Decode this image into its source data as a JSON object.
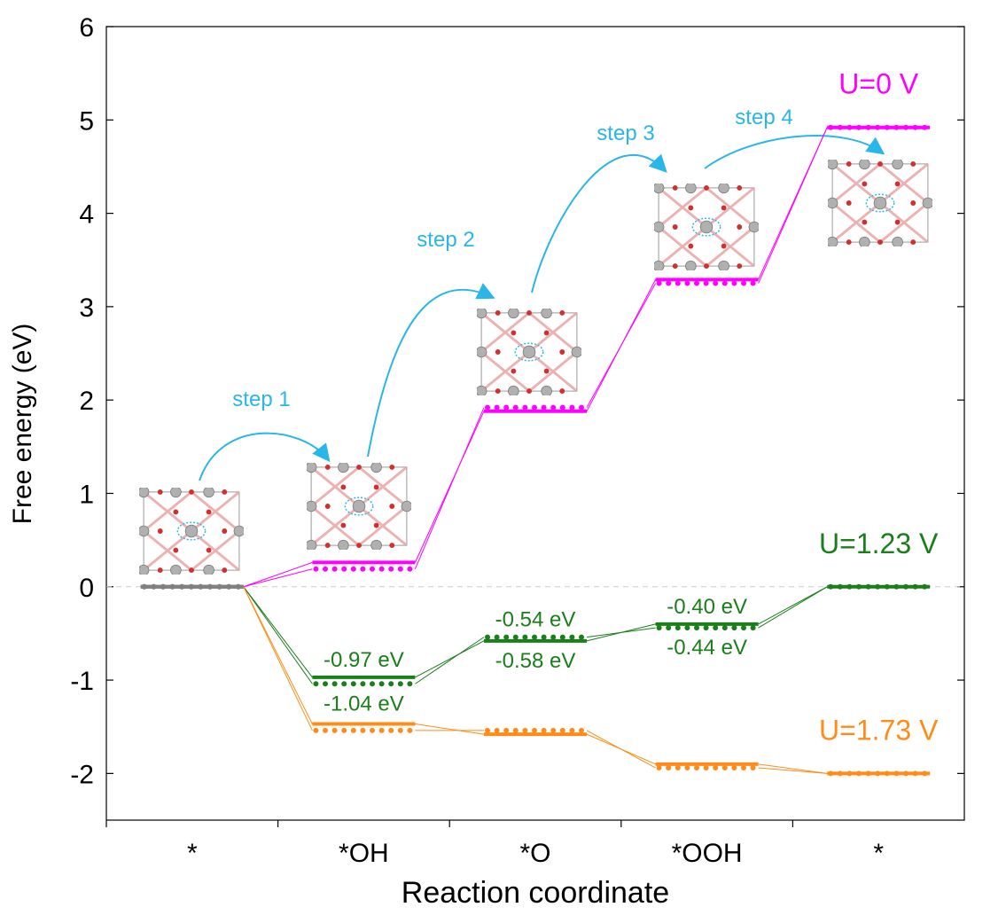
{
  "chart_data": {
    "type": "energy_levels",
    "y_label": "Free energy (eV)",
    "x_label": "Reaction coordinate",
    "categories": [
      "*",
      "*OH",
      "*O",
      "*OOH",
      "*"
    ],
    "ylim": [
      -2.5,
      6
    ],
    "yticks": [
      -2,
      -1,
      0,
      1,
      2,
      3,
      4,
      5,
      6
    ],
    "series": [
      {
        "name": "U=0 V",
        "color": "#ff00ff",
        "values": [
          0,
          0.26,
          1.88,
          3.29,
          4.92
        ],
        "values_dotted": [
          0,
          0.19,
          1.92,
          3.25,
          4.92
        ]
      },
      {
        "name": "U=1.23 V",
        "color": "#1a7f1a",
        "values": [
          0,
          -0.97,
          -0.58,
          -0.4,
          0
        ],
        "values_dotted": [
          0,
          -1.04,
          -0.54,
          -0.44,
          0
        ],
        "value_labels": [
          null,
          "-0.97 eV",
          "-0.58 eV",
          "-0.40 eV",
          null
        ],
        "value_labels_dotted": [
          null,
          "-1.04 eV",
          "-0.54 eV",
          "-0.44 eV",
          null
        ]
      },
      {
        "name": "U=1.73 V",
        "color": "#ff8c1a",
        "values": [
          0,
          -1.47,
          -1.58,
          -1.9,
          -2.0
        ],
        "values_dotted": [
          0,
          -1.54,
          -1.54,
          -1.94,
          -2.0
        ]
      }
    ],
    "annotations": [
      "step 1",
      "step 2",
      "step 3",
      "step 4"
    ]
  }
}
